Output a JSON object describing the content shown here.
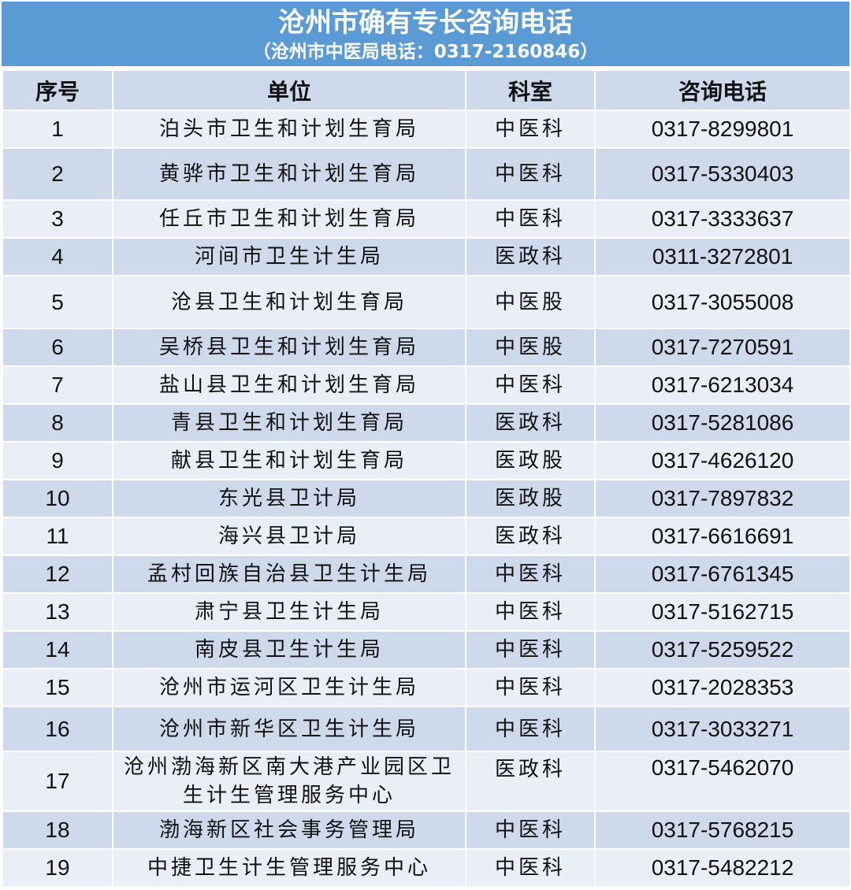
{
  "title": "沧州市确有专长咨询电话",
  "subtitle": "（沧州市中医局电话：0317-2160846）",
  "colors": {
    "banner": "#5b9bd5",
    "header_row": "#cfd9ec",
    "row_light": "#e9eef7",
    "row_dark": "#cfd9ec"
  },
  "columns": [
    "序号",
    "单位",
    "科室",
    "咨询电话"
  ],
  "rows": [
    [
      "1",
      "泊头市卫生和计划生育局",
      "中医科",
      "0317-8299801"
    ],
    [
      "2",
      "黄骅市卫生和计划生育局",
      "中医科",
      "0317-5330403"
    ],
    [
      "3",
      "任丘市卫生和计划生育局",
      "中医科",
      "0317-3333637"
    ],
    [
      "4",
      "河间市卫生计生局",
      "医政科",
      "0311-3272801"
    ],
    [
      "5",
      "沧县卫生和计划生育局",
      "中医股",
      "0317-3055008"
    ],
    [
      "6",
      "吴桥县卫生和计划生育局",
      "中医股",
      "0317-7270591"
    ],
    [
      "7",
      "盐山县卫生和计划生育局",
      "中医科",
      "0317-6213034"
    ],
    [
      "8",
      "青县卫生和计划生育局",
      "医政科",
      "0317-5281086"
    ],
    [
      "9",
      "献县卫生和计划生育局",
      "医政股",
      "0317-4626120"
    ],
    [
      "10",
      "东光县卫计局",
      "医政股",
      "0317-7897832"
    ],
    [
      "11",
      "海兴县卫计局",
      "医政科",
      "0317-6616691"
    ],
    [
      "12",
      "孟村回族自治县卫生计生局",
      "中医科",
      "0317-6761345"
    ],
    [
      "13",
      "肃宁县卫生计生局",
      "中医科",
      "0317-5162715"
    ],
    [
      "14",
      "南皮县卫生计生局",
      "中医科",
      "0317-5259522"
    ],
    [
      "15",
      "沧州市运河区卫生计生局",
      "中医科",
      "0317-2028353"
    ],
    [
      "16",
      "沧州市新华区卫生计生局",
      "中医科",
      "0317-3033271"
    ],
    [
      "17",
      "沧州渤海新区南大港产业园区卫生计生管理服务中心",
      "医政科",
      "0317-5462070"
    ],
    [
      "18",
      "渤海新区社会事务管理局",
      "中医科",
      "0317-5768215"
    ],
    [
      "19",
      "中捷卫生计生管理服务中心",
      "中医科",
      "0317-5482212"
    ]
  ]
}
